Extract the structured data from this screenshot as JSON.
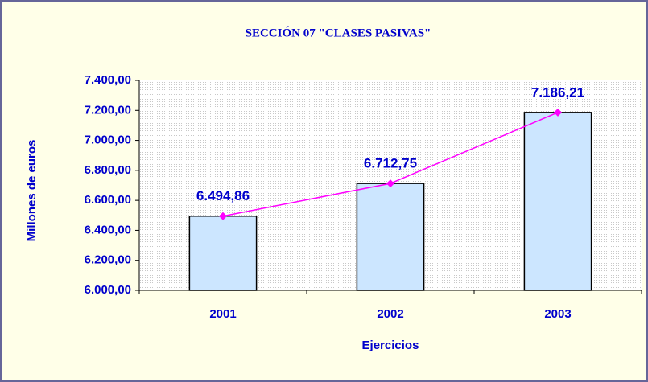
{
  "chart_data": {
    "type": "bar",
    "title": "SECCIÓN 07 \"CLASES PASIVAS\"",
    "y_label": "Millones de euros",
    "x_label": "Ejercicios",
    "categories": [
      "2001",
      "2002",
      "2003"
    ],
    "values": [
      6494.86,
      6712.75,
      7186.21
    ],
    "value_labels": [
      "6.494,86",
      "6.712,75",
      "7.186,21"
    ],
    "color": "#cce6ff",
    "line_color": "#ff00ff",
    "line_overlay": true,
    "ylim": [
      6000,
      7400
    ],
    "yticks": [
      {
        "value": 6000,
        "label": "6.000,00"
      },
      {
        "value": 6200,
        "label": "6.200,00"
      },
      {
        "value": 6400,
        "label": "6.400,00"
      },
      {
        "value": 6600,
        "label": "6.600,00"
      },
      {
        "value": 6800,
        "label": "6.800,00"
      },
      {
        "value": 7000,
        "label": "7.000,00"
      },
      {
        "value": 7200,
        "label": "7.200,00"
      },
      {
        "value": 7400,
        "label": "7.400,00"
      }
    ]
  }
}
